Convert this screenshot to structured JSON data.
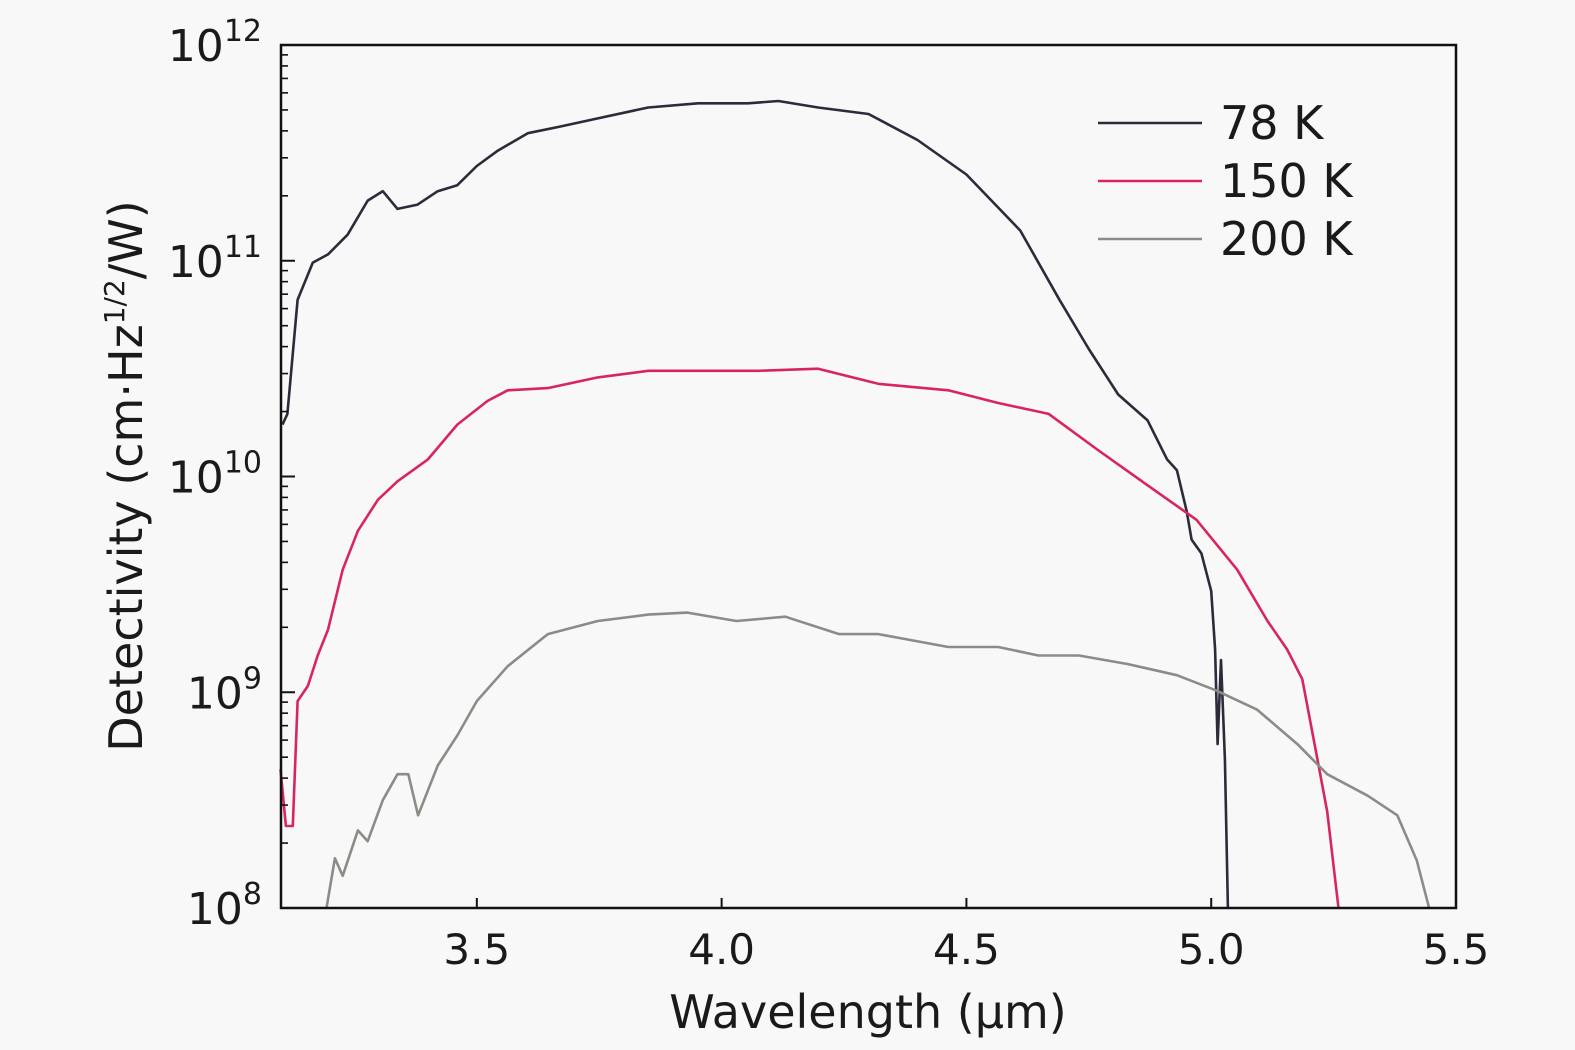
{
  "chart_data": {
    "type": "line",
    "title": "",
    "xlabel": "Wavelength (µm)",
    "ylabel": {
      "prefix": "Detectivity (cm·Hz",
      "sup": "1/2",
      "suffix": "/W)"
    },
    "xlim": [
      3.1,
      5.5
    ],
    "ylim": [
      100000000.0,
      1000000000000.0
    ],
    "yscale": "log",
    "grid": false,
    "legend_position": "top-right",
    "x_ticks": [
      3.5,
      4.0,
      4.5,
      5.0,
      5.5
    ],
    "x_tick_labels": [
      "3.5",
      "4.0",
      "4.5",
      "5.0",
      "5.5"
    ],
    "y_ticks": [
      100000000.0,
      1000000000.0,
      10000000000.0,
      100000000000.0,
      1000000000000.0
    ],
    "y_tick_labels": [
      {
        "base": "10",
        "exp": "8"
      },
      {
        "base": "10",
        "exp": "9"
      },
      {
        "base": "10",
        "exp": "10"
      },
      {
        "base": "10",
        "exp": "11"
      },
      {
        "base": "10",
        "exp": "12"
      }
    ],
    "series": [
      {
        "name": "78 K",
        "color": "#2b2b3a",
        "x": [
          3.103,
          3.113,
          3.134,
          3.165,
          3.196,
          3.236,
          3.277,
          3.308,
          3.338,
          3.379,
          3.42,
          3.46,
          3.5,
          3.543,
          3.604,
          3.666,
          3.747,
          3.85,
          3.952,
          4.054,
          4.116,
          4.197,
          4.3,
          4.4,
          4.5,
          4.61,
          4.69,
          4.75,
          4.81,
          4.87,
          4.91,
          4.93,
          4.95,
          4.96,
          4.98,
          5.0,
          5.008,
          5.013,
          5.02,
          5.028,
          5.034
        ],
        "y": [
          17400000000.0,
          19500000000.0,
          66000000000.0,
          98000000000.0,
          107000000000.0,
          132000000000.0,
          190000000000.0,
          210000000000.0,
          174000000000.0,
          182000000000.0,
          210000000000.0,
          224000000000.0,
          275000000000.0,
          324000000000.0,
          390000000000.0,
          417000000000.0,
          457000000000.0,
          513000000000.0,
          537000000000.0,
          537000000000.0,
          550000000000.0,
          513000000000.0,
          479000000000.0,
          363000000000.0,
          251000000000.0,
          138000000000.0,
          66000000000.0,
          39000000000.0,
          24000000000.0,
          18200000000.0,
          12000000000.0,
          10700000000.0,
          6900000000.0,
          5100000000.0,
          4400000000.0,
          2950000000.0,
          1580000000.0,
          575000000.0,
          1410000000.0,
          490000000.0,
          100000000.0
        ]
      },
      {
        "name": "150 K",
        "color": "#d8265c",
        "x": [
          3.099,
          3.11,
          3.124,
          3.134,
          3.155,
          3.175,
          3.196,
          3.226,
          3.257,
          3.298,
          3.338,
          3.4,
          3.46,
          3.522,
          3.563,
          3.645,
          3.747,
          3.85,
          3.952,
          4.075,
          4.197,
          4.32,
          4.463,
          4.565,
          4.668,
          4.77,
          4.87,
          4.97,
          5.053,
          5.115,
          5.155,
          5.186,
          5.217,
          5.237,
          5.26
        ],
        "y": [
          440000000.0,
          240000000.0,
          240000000.0,
          910000000.0,
          1070000000.0,
          1480000000.0,
          1950000000.0,
          3700000000.0,
          5600000000.0,
          7800000000.0,
          9500000000.0,
          12000000000.0,
          17400000000.0,
          22400000000.0,
          25100000000.0,
          25700000000.0,
          28800000000.0,
          30900000000.0,
          30900000000.0,
          30900000000.0,
          31600000000.0,
          26900000000.0,
          25100000000.0,
          21900000000.0,
          19500000000.0,
          13200000000.0,
          9100000000.0,
          6300000000.0,
          3700000000.0,
          2140000000.0,
          1580000000.0,
          1150000000.0,
          490000000.0,
          280000000.0,
          100000000.0
        ]
      },
      {
        "name": "200 K",
        "color": "#8c8c86",
        "x": [
          3.193,
          3.21,
          3.226,
          3.257,
          3.277,
          3.308,
          3.338,
          3.36,
          3.38,
          3.42,
          3.46,
          3.5,
          3.563,
          3.645,
          3.747,
          3.85,
          3.93,
          4.03,
          4.13,
          4.24,
          4.32,
          4.463,
          4.565,
          4.647,
          4.73,
          4.83,
          4.93,
          5.01,
          5.094,
          5.176,
          5.237,
          5.32,
          5.38,
          5.42,
          5.445
        ],
        "y": [
          100000000.0,
          170000000.0,
          141000000.0,
          229000000.0,
          204000000.0,
          316000000.0,
          417000000.0,
          417000000.0,
          269000000.0,
          457000000.0,
          630000000.0,
          910000000.0,
          1320000000.0,
          1860000000.0,
          2140000000.0,
          2290000000.0,
          2340000000.0,
          2140000000.0,
          2240000000.0,
          1860000000.0,
          1860000000.0,
          1620000000.0,
          1620000000.0,
          1480000000.0,
          1480000000.0,
          1350000000.0,
          1200000000.0,
          1020000000.0,
          830000000.0,
          575000000.0,
          417000000.0,
          331000000.0,
          269000000.0,
          166000000.0,
          100000000.0
        ]
      }
    ]
  }
}
